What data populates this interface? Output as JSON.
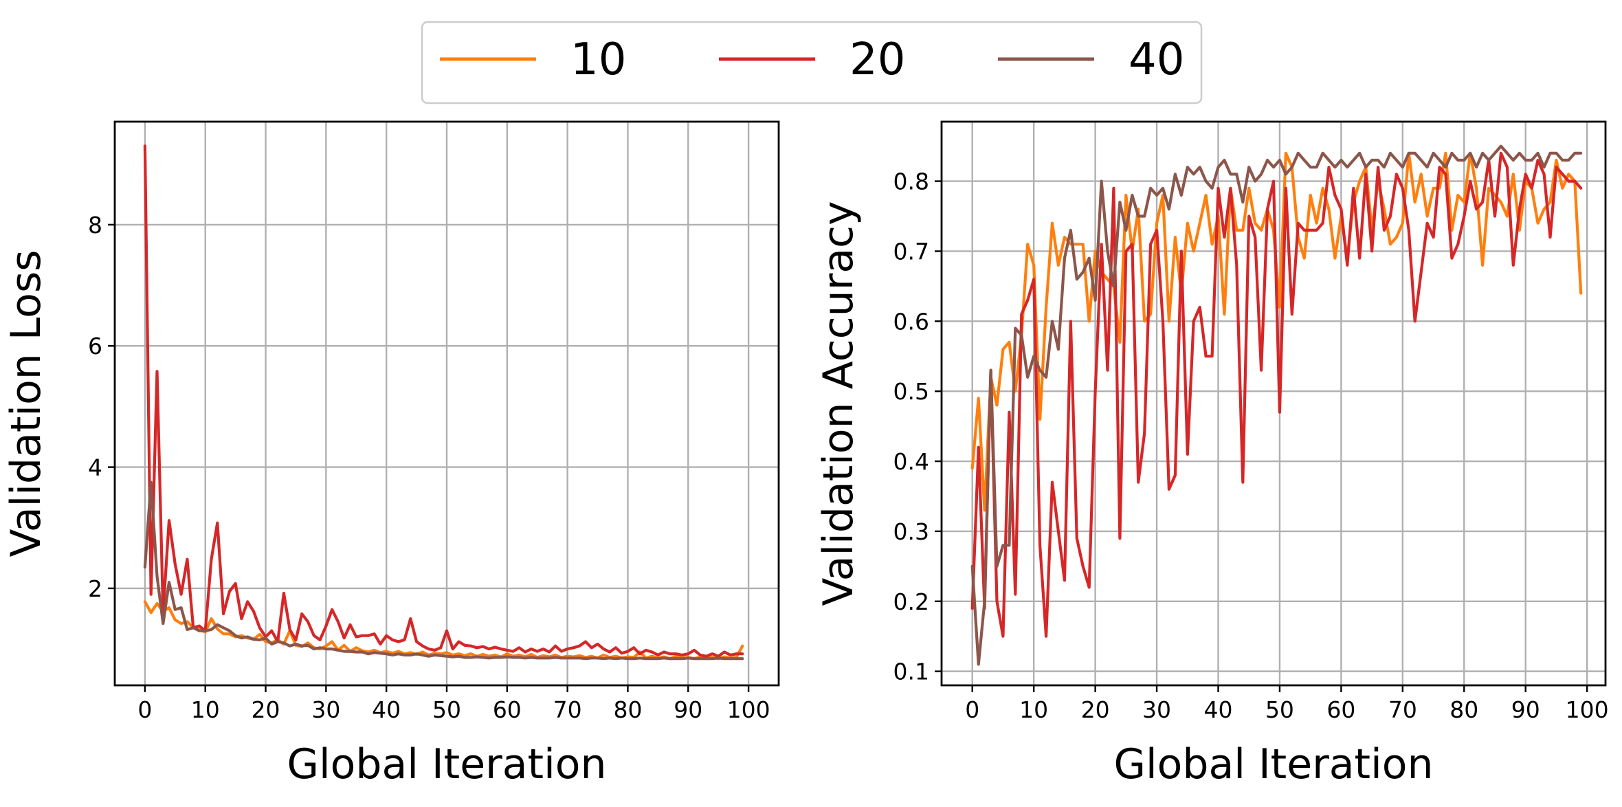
{
  "legend": {
    "entries": [
      {
        "label": "10",
        "color": "#ff7f0e"
      },
      {
        "label": "20",
        "color": "#d62728"
      },
      {
        "label": "40",
        "color": "#8c564b"
      }
    ],
    "placement": "top-center"
  },
  "chart_data": [
    {
      "type": "line",
      "xlabel": "Global Iteration",
      "ylabel": "Validation Loss",
      "xlim": [
        -5,
        105
      ],
      "ylim": [
        0.4,
        9.7
      ],
      "xticks": [
        0,
        10,
        20,
        30,
        40,
        50,
        60,
        70,
        80,
        90,
        100
      ],
      "yticks": [
        2,
        4,
        6,
        8
      ],
      "grid": true,
      "x": [
        0,
        1,
        2,
        3,
        4,
        5,
        6,
        7,
        8,
        9,
        10,
        11,
        12,
        13,
        14,
        15,
        16,
        17,
        18,
        19,
        20,
        21,
        22,
        23,
        24,
        25,
        26,
        27,
        28,
        29,
        30,
        31,
        32,
        33,
        34,
        35,
        36,
        37,
        38,
        39,
        40,
        41,
        42,
        43,
        44,
        45,
        46,
        47,
        48,
        49,
        50,
        51,
        52,
        53,
        54,
        55,
        56,
        57,
        58,
        59,
        60,
        61,
        62,
        63,
        64,
        65,
        66,
        67,
        68,
        69,
        70,
        71,
        72,
        73,
        74,
        75,
        76,
        77,
        78,
        79,
        80,
        81,
        82,
        83,
        84,
        85,
        86,
        87,
        88,
        89,
        90,
        91,
        92,
        93,
        94,
        95,
        96,
        97,
        98,
        99
      ],
      "series": [
        {
          "name": "10",
          "color": "#ff7f0e",
          "values": [
            1.78,
            1.6,
            1.75,
            1.62,
            1.68,
            1.48,
            1.42,
            1.45,
            1.35,
            1.32,
            1.28,
            1.5,
            1.33,
            1.25,
            1.25,
            1.2,
            1.22,
            1.18,
            1.16,
            1.24,
            1.12,
            1.1,
            1.15,
            1.08,
            1.3,
            1.06,
            1.04,
            1.1,
            1.02,
            1.0,
            1.05,
            1.12,
            0.98,
            1.06,
            0.96,
            1.02,
            0.97,
            0.95,
            0.98,
            0.94,
            0.96,
            0.93,
            0.96,
            0.92,
            0.94,
            0.91,
            0.95,
            0.9,
            0.93,
            0.92,
            0.94,
            0.9,
            0.92,
            0.89,
            0.92,
            0.88,
            0.91,
            0.88,
            0.9,
            0.87,
            0.92,
            0.88,
            0.9,
            0.87,
            0.91,
            0.86,
            0.89,
            0.87,
            0.9,
            0.86,
            0.88,
            0.87,
            0.89,
            0.86,
            0.88,
            0.85,
            0.9,
            0.86,
            0.88,
            0.85,
            0.87,
            0.86,
            0.95,
            0.85,
            0.88,
            0.85,
            0.87,
            0.84,
            0.88,
            0.85,
            0.86,
            0.84,
            0.87,
            0.85,
            0.86,
            0.84,
            0.87,
            0.85,
            0.86,
            1.05
          ]
        },
        {
          "name": "20",
          "color": "#d62728",
          "values": [
            9.3,
            1.9,
            5.58,
            1.6,
            3.12,
            2.4,
            1.9,
            2.48,
            1.35,
            1.38,
            1.3,
            2.48,
            3.08,
            1.58,
            1.95,
            2.08,
            1.5,
            1.78,
            1.62,
            1.35,
            1.2,
            1.3,
            1.12,
            1.92,
            1.32,
            1.15,
            1.58,
            1.45,
            1.22,
            1.15,
            1.38,
            1.65,
            1.45,
            1.18,
            1.4,
            1.2,
            1.22,
            1.22,
            1.25,
            1.08,
            1.22,
            1.15,
            1.12,
            1.15,
            1.5,
            1.12,
            1.05,
            1.0,
            0.98,
            1.02,
            1.3,
            1.0,
            1.12,
            1.06,
            1.05,
            1.02,
            1.04,
            1.0,
            1.03,
            1.0,
            0.98,
            0.96,
            1.02,
            0.95,
            1.0,
            0.96,
            1.0,
            0.95,
            1.05,
            0.96,
            1.0,
            1.02,
            1.05,
            1.12,
            1.02,
            1.08,
            1.0,
            0.95,
            1.02,
            0.93,
            0.96,
            1.02,
            0.92,
            0.98,
            0.95,
            0.9,
            0.95,
            0.92,
            0.92,
            0.9,
            0.92,
            0.98,
            0.9,
            0.88,
            0.92,
            0.88,
            0.95,
            0.9,
            0.92,
            0.92
          ]
        },
        {
          "name": "40",
          "color": "#8c564b",
          "values": [
            2.35,
            3.75,
            2.2,
            1.42,
            2.1,
            1.65,
            1.68,
            1.32,
            1.35,
            1.3,
            1.3,
            1.32,
            1.4,
            1.35,
            1.3,
            1.22,
            1.18,
            1.2,
            1.16,
            1.15,
            1.18,
            1.08,
            1.12,
            1.1,
            1.05,
            1.08,
            1.05,
            1.06,
            1.0,
            1.02,
            1.0,
            1.0,
            0.98,
            0.96,
            0.96,
            0.95,
            0.95,
            0.92,
            0.94,
            0.93,
            0.92,
            0.9,
            0.92,
            0.9,
            0.9,
            0.92,
            0.9,
            0.88,
            0.9,
            0.89,
            0.88,
            0.87,
            0.88,
            0.86,
            0.86,
            0.87,
            0.86,
            0.85,
            0.86,
            0.86,
            0.87,
            0.86,
            0.86,
            0.85,
            0.86,
            0.85,
            0.85,
            0.85,
            0.86,
            0.85,
            0.85,
            0.85,
            0.85,
            0.84,
            0.85,
            0.85,
            0.84,
            0.85,
            0.84,
            0.85,
            0.84,
            0.84,
            0.85,
            0.84,
            0.84,
            0.84,
            0.85,
            0.84,
            0.84,
            0.84,
            0.85,
            0.84,
            0.84,
            0.84,
            0.84,
            0.85,
            0.84,
            0.84,
            0.84,
            0.84
          ]
        }
      ]
    },
    {
      "type": "line",
      "xlabel": "Global Iteration",
      "ylabel": "Validation Accuracy",
      "xlim": [
        -5,
        103
      ],
      "ylim": [
        0.08,
        0.885
      ],
      "xticks": [
        0,
        10,
        20,
        30,
        40,
        50,
        60,
        70,
        80,
        90,
        100
      ],
      "yticks": [
        0.1,
        0.2,
        0.3,
        0.4,
        0.5,
        0.6,
        0.7,
        0.8
      ],
      "grid": true,
      "x": [
        0,
        1,
        2,
        3,
        4,
        5,
        6,
        7,
        8,
        9,
        10,
        11,
        12,
        13,
        14,
        15,
        16,
        17,
        18,
        19,
        20,
        21,
        22,
        23,
        24,
        25,
        26,
        27,
        28,
        29,
        30,
        31,
        32,
        33,
        34,
        35,
        36,
        37,
        38,
        39,
        40,
        41,
        42,
        43,
        44,
        45,
        46,
        47,
        48,
        49,
        50,
        51,
        52,
        53,
        54,
        55,
        56,
        57,
        58,
        59,
        60,
        61,
        62,
        63,
        64,
        65,
        66,
        67,
        68,
        69,
        70,
        71,
        72,
        73,
        74,
        75,
        76,
        77,
        78,
        79,
        80,
        81,
        82,
        83,
        84,
        85,
        86,
        87,
        88,
        89,
        90,
        91,
        92,
        93,
        94,
        95,
        96,
        97,
        98,
        99
      ],
      "series": [
        {
          "name": "10",
          "color": "#ff7f0e",
          "values": [
            0.39,
            0.49,
            0.33,
            0.52,
            0.48,
            0.56,
            0.57,
            0.5,
            0.58,
            0.71,
            0.68,
            0.46,
            0.62,
            0.74,
            0.68,
            0.72,
            0.71,
            0.71,
            0.71,
            0.6,
            0.7,
            0.67,
            0.66,
            0.65,
            0.57,
            0.78,
            0.7,
            0.76,
            0.6,
            0.61,
            0.74,
            0.78,
            0.6,
            0.72,
            0.64,
            0.74,
            0.7,
            0.74,
            0.78,
            0.71,
            0.75,
            0.61,
            0.79,
            0.73,
            0.73,
            0.79,
            0.74,
            0.73,
            0.76,
            0.73,
            0.62,
            0.84,
            0.82,
            0.72,
            0.69,
            0.78,
            0.74,
            0.79,
            0.76,
            0.69,
            0.75,
            0.69,
            0.77,
            0.8,
            0.82,
            0.73,
            0.8,
            0.76,
            0.71,
            0.72,
            0.74,
            0.84,
            0.77,
            0.81,
            0.75,
            0.79,
            0.79,
            0.84,
            0.73,
            0.78,
            0.77,
            0.84,
            0.79,
            0.68,
            0.79,
            0.78,
            0.77,
            0.75,
            0.81,
            0.73,
            0.8,
            0.79,
            0.74,
            0.76,
            0.77,
            0.83,
            0.79,
            0.81,
            0.8,
            0.64
          ]
        },
        {
          "name": "20",
          "color": "#d62728",
          "values": [
            0.19,
            0.42,
            0.19,
            0.53,
            0.2,
            0.15,
            0.47,
            0.21,
            0.61,
            0.63,
            0.66,
            0.28,
            0.15,
            0.37,
            0.3,
            0.23,
            0.6,
            0.29,
            0.25,
            0.22,
            0.5,
            0.71,
            0.53,
            0.79,
            0.29,
            0.7,
            0.71,
            0.37,
            0.44,
            0.71,
            0.73,
            0.6,
            0.36,
            0.38,
            0.7,
            0.41,
            0.6,
            0.62,
            0.55,
            0.55,
            0.79,
            0.72,
            0.79,
            0.68,
            0.37,
            0.75,
            0.72,
            0.53,
            0.76,
            0.8,
            0.47,
            0.79,
            0.61,
            0.74,
            0.73,
            0.73,
            0.73,
            0.74,
            0.82,
            0.78,
            0.76,
            0.68,
            0.79,
            0.69,
            0.81,
            0.7,
            0.82,
            0.73,
            0.75,
            0.81,
            0.79,
            0.73,
            0.6,
            0.67,
            0.74,
            0.72,
            0.82,
            0.81,
            0.69,
            0.71,
            0.75,
            0.8,
            0.76,
            0.77,
            0.83,
            0.75,
            0.84,
            0.82,
            0.68,
            0.76,
            0.81,
            0.79,
            0.83,
            0.81,
            0.72,
            0.82,
            0.81,
            0.8,
            0.8,
            0.79
          ]
        },
        {
          "name": "40",
          "color": "#8c564b",
          "values": [
            0.25,
            0.11,
            0.2,
            0.53,
            0.25,
            0.28,
            0.28,
            0.59,
            0.58,
            0.52,
            0.55,
            0.53,
            0.52,
            0.6,
            0.56,
            0.69,
            0.73,
            0.66,
            0.67,
            0.69,
            0.63,
            0.8,
            0.7,
            0.65,
            0.77,
            0.73,
            0.78,
            0.75,
            0.75,
            0.79,
            0.78,
            0.79,
            0.76,
            0.81,
            0.78,
            0.82,
            0.81,
            0.82,
            0.8,
            0.79,
            0.82,
            0.83,
            0.81,
            0.81,
            0.77,
            0.82,
            0.8,
            0.81,
            0.83,
            0.82,
            0.83,
            0.81,
            0.82,
            0.84,
            0.83,
            0.82,
            0.82,
            0.84,
            0.83,
            0.82,
            0.83,
            0.82,
            0.83,
            0.84,
            0.82,
            0.83,
            0.83,
            0.82,
            0.84,
            0.83,
            0.82,
            0.84,
            0.84,
            0.83,
            0.82,
            0.84,
            0.83,
            0.82,
            0.84,
            0.83,
            0.83,
            0.84,
            0.82,
            0.84,
            0.83,
            0.84,
            0.85,
            0.84,
            0.83,
            0.84,
            0.83,
            0.83,
            0.84,
            0.82,
            0.84,
            0.84,
            0.83,
            0.83,
            0.84,
            0.84
          ]
        }
      ]
    }
  ]
}
